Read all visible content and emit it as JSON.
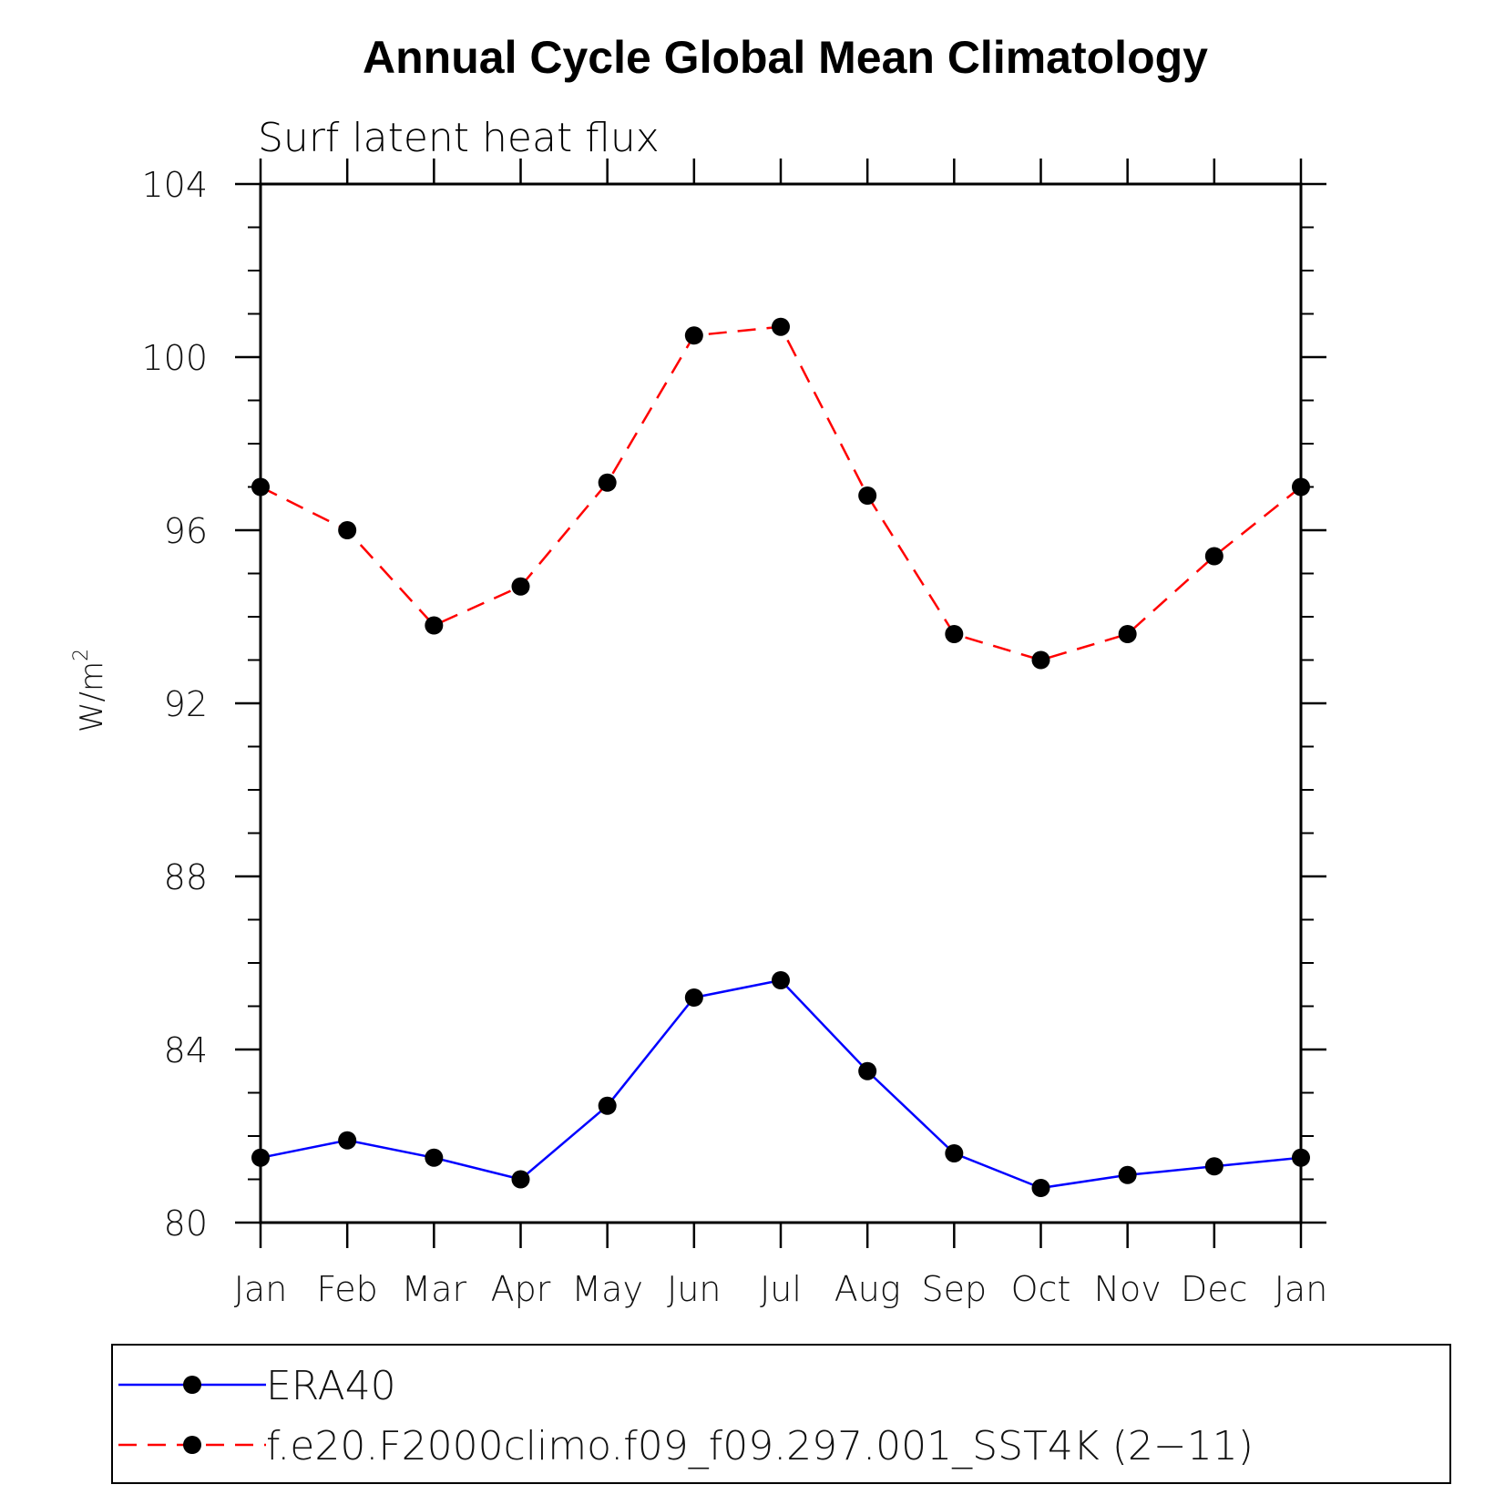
{
  "chart_data": {
    "type": "line",
    "title": "Annual Cycle Global Mean Climatology",
    "subtitle": "Surf latent heat flux",
    "ylabel": "W/m",
    "ylabel_superscript": "2",
    "xlabel": "",
    "categories": [
      "Jan",
      "Feb",
      "Mar",
      "Apr",
      "May",
      "Jun",
      "Jul",
      "Aug",
      "Sep",
      "Oct",
      "Nov",
      "Dec",
      "Jan"
    ],
    "ylim": [
      80,
      104
    ],
    "yticks": [
      80,
      84,
      88,
      92,
      96,
      100,
      104
    ],
    "ytick_labels": [
      "80",
      "84",
      "88",
      "92",
      "96",
      "100",
      "104"
    ],
    "yminor_step": 1,
    "grid": false,
    "legend_position": "bottom",
    "series": [
      {
        "name": "ERA40",
        "color": "#0000ff",
        "style": "solid",
        "marker": "circle",
        "values": [
          81.5,
          81.9,
          81.5,
          81.0,
          82.7,
          85.2,
          85.6,
          83.5,
          81.6,
          80.8,
          81.1,
          81.3,
          81.5
        ]
      },
      {
        "name": "f.e20.F2000climo.f09_f09.297.001_SST4K (2−11)",
        "color": "#ff0000",
        "style": "dashed",
        "marker": "circle",
        "values": [
          97.0,
          96.0,
          93.8,
          94.7,
          97.1,
          100.5,
          100.7,
          96.8,
          93.6,
          93.0,
          93.6,
          95.4,
          97.0
        ]
      }
    ]
  }
}
